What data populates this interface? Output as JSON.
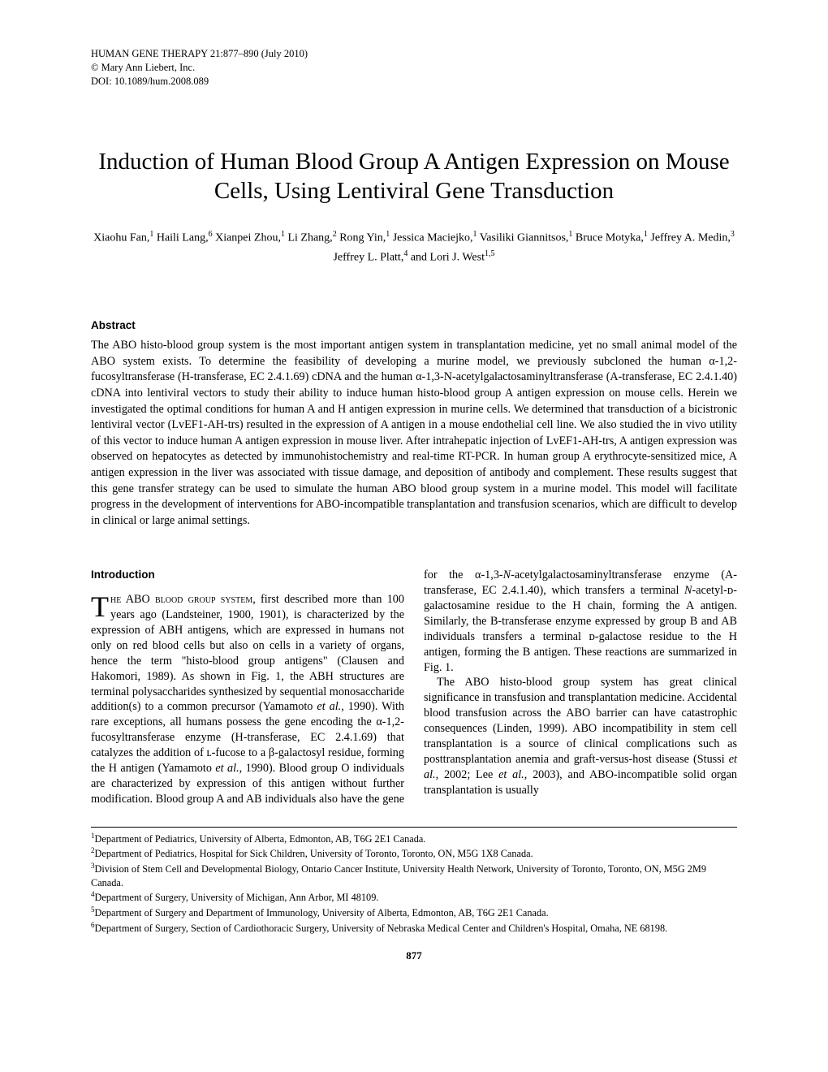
{
  "header": {
    "line1": "HUMAN GENE THERAPY 21:877–890 (July 2010)",
    "line2": "© Mary Ann Liebert, Inc.",
    "line3": "DOI: 10.1089/hum.2008.089"
  },
  "title": "Induction of Human Blood Group A Antigen Expression on Mouse Cells, Using Lentiviral Gene Transduction",
  "authors_html": "Xiaohu Fan,<sup>1</sup> Haili Lang,<sup>6</sup> Xianpei Zhou,<sup>1</sup> Li Zhang,<sup>2</sup> Rong Yin,<sup>1</sup> Jessica Maciejko,<sup>1</sup> Vasiliki Giannitsos,<sup>1</sup> Bruce Motyka,<sup>1</sup> Jeffrey A. Medin,<sup>3</sup> Jeffrey L. Platt,<sup>4</sup> and Lori J. West<sup>1,5</sup>",
  "abstract": {
    "heading": "Abstract",
    "text": "The ABO histo-blood group system is the most important antigen system in transplantation medicine, yet no small animal model of the ABO system exists. To determine the feasibility of developing a murine model, we previously subcloned the human α-1,2-fucosyltransferase (H-transferase, EC 2.4.1.69) cDNA and the human α-1,3-N-acetylgalactosaminyltransferase (A-transferase, EC 2.4.1.40) cDNA into lentiviral vectors to study their ability to induce human histo-blood group A antigen expression on mouse cells. Herein we investigated the optimal conditions for human A and H antigen expression in murine cells. We determined that transduction of a bicistronic lentiviral vector (LvEF1-AH-trs) resulted in the expression of A antigen in a mouse endothelial cell line. We also studied the in vivo utility of this vector to induce human A antigen expression in mouse liver. After intrahepatic injection of LvEF1-AH-trs, A antigen expression was observed on hepatocytes as detected by immunohistochemistry and real-time RT-PCR. In human group A erythrocyte-sensitized mice, A antigen expression in the liver was associated with tissue damage, and deposition of antibody and complement. These results suggest that this gene transfer strategy can be used to simulate the human ABO blood group system in a murine model. This model will facilitate progress in the development of interventions for ABO-incompatible transplantation and transfusion scenarios, which are difficult to develop in clinical or large animal settings."
  },
  "introduction": {
    "heading": "Introduction",
    "dropcap": "T",
    "lead_smallcaps": "he ABO blood group system,",
    "body_html": " first described more than 100 years ago (Landsteiner, 1900, 1901), is characterized by the expression of ABH antigens, which are expressed in humans not only on red blood cells but also on cells in a variety of organs, hence the term \"histo-blood group antigens\" (Clausen and Hakomori, 1989). As shown in Fig. 1, the ABH structures are terminal polysaccharides synthesized by sequential monosaccharide addition(s) to a common precursor (Yamamoto <i>et al.</i>, 1990). With rare exceptions, all humans possess the gene encoding the α-1,2-fucosyltransferase enzyme (H-transferase, EC 2.4.1.69) that catalyzes the addition of ʟ-fucose to a β-galactosyl residue, forming the H antigen (Yamamoto <i>et al.</i>, 1990). Blood group O individuals are characterized by expression of this antigen without further modification. Blood group A and AB individuals also have the gene for the α-1,3-<i>N</i>-acetylgalactosaminyltransferase enzyme (A-transferase, EC 2.4.1.40), which transfers a terminal <i>N</i>-acetyl-ᴅ-galactosamine residue to the H chain, forming the A antigen. Similarly, the B-transferase enzyme expressed by group B and AB individuals transfers a terminal ᴅ-galactose residue to the H antigen, forming the B antigen. These reactions are summarized in Fig. 1.",
    "para2_html": "The ABO histo-blood group system has great clinical significance in transfusion and transplantation medicine. Accidental blood transfusion across the ABO barrier can have catastrophic consequences (Linden, 1999). ABO incompatibility in stem cell transplantation is a source of clinical complications such as posttransplantation anemia and graft-versus-host disease (Stussi <i>et al.</i>, 2002; Lee <i>et al.</i>, 2003), and ABO-incompatible solid organ transplantation is usually"
  },
  "footnotes": [
    "<sup>1</sup>Department of Pediatrics, University of Alberta, Edmonton, AB, T6G 2E1 Canada.",
    "<sup>2</sup>Department of Pediatrics, Hospital for Sick Children, University of Toronto, Toronto, ON, M5G 1X8 Canada.",
    "<sup>3</sup>Division of Stem Cell and Developmental Biology, Ontario Cancer Institute, University Health Network, University of Toronto, Toronto, ON, M5G 2M9 Canada.",
    "<sup>4</sup>Department of Surgery, University of Michigan, Ann Arbor, MI 48109.",
    "<sup>5</sup>Department of Surgery and Department of Immunology, University of Alberta, Edmonton, AB, T6G 2E1 Canada.",
    "<sup>6</sup>Department of Surgery, Section of Cardiothoracic Surgery, University of Nebraska Medical Center and Children's Hospital, Omaha, NE 68198."
  ],
  "page_number": "877"
}
